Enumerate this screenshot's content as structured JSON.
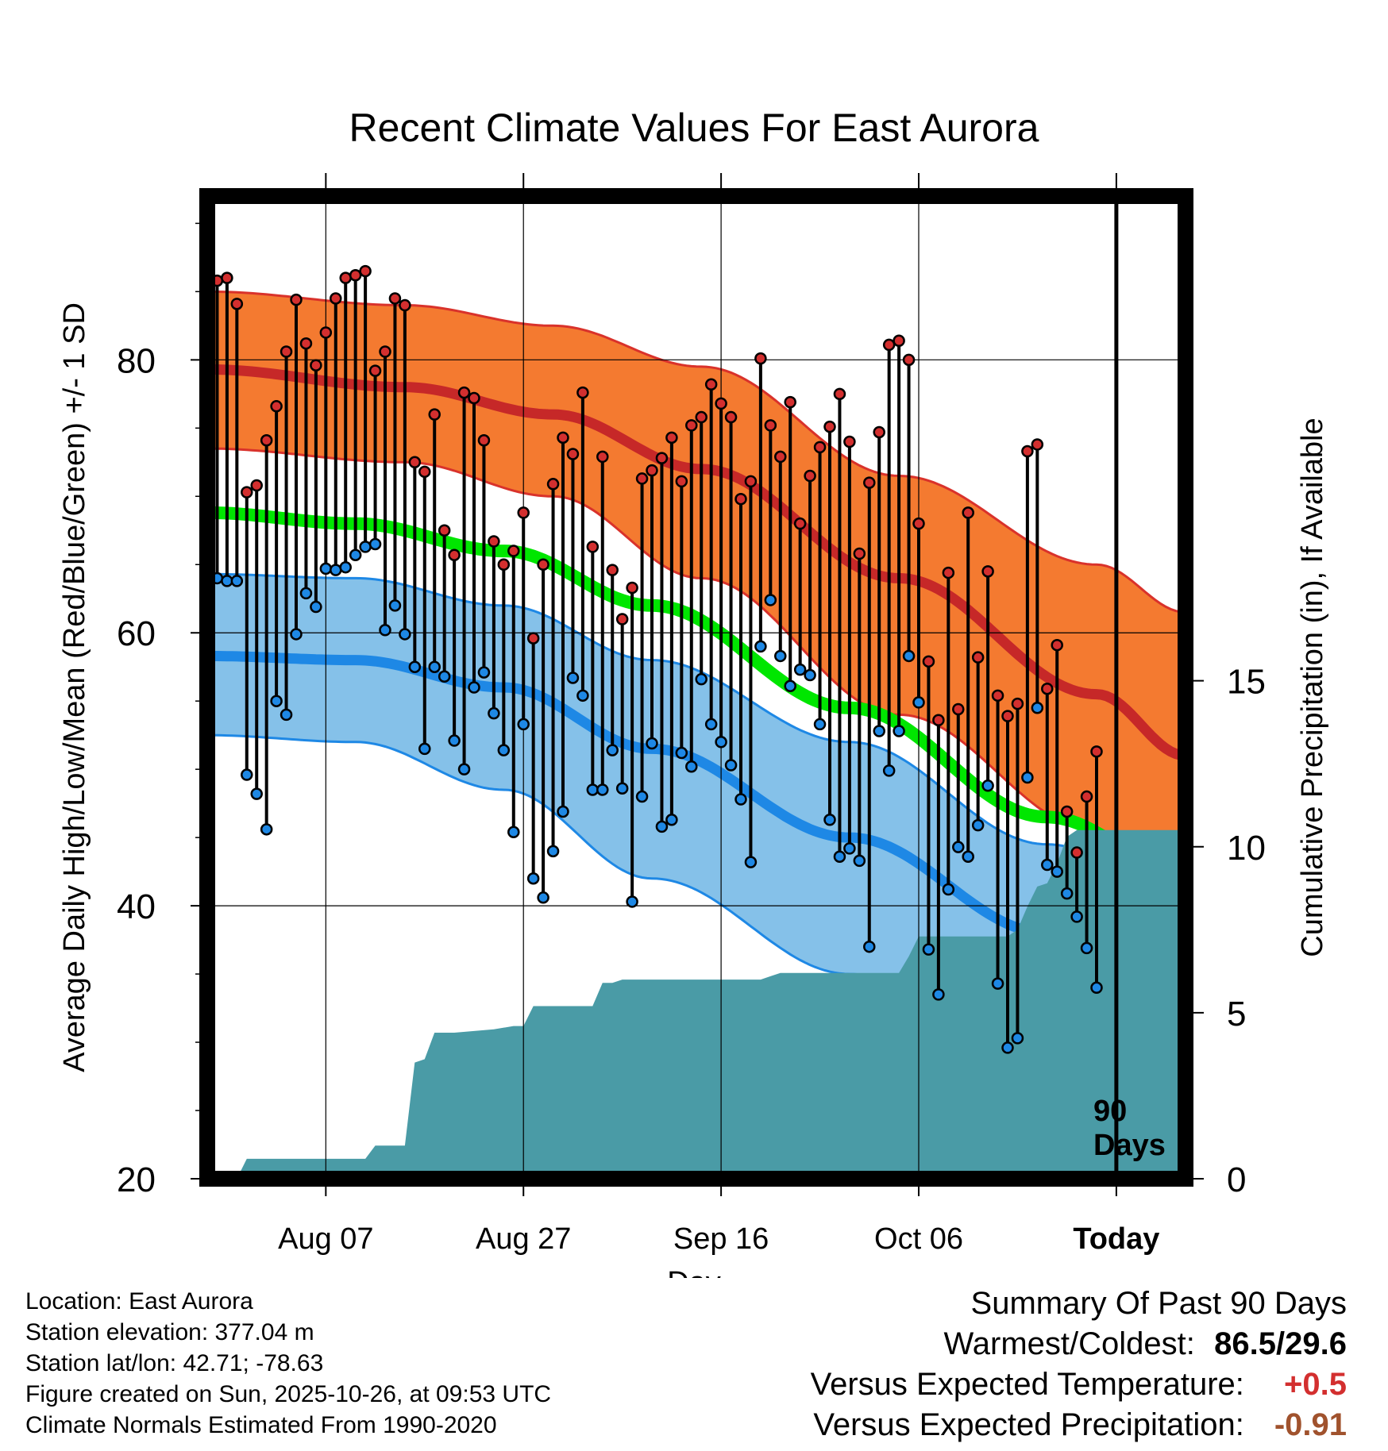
{
  "colors": {
    "high_band": "#F47A30",
    "high_band_edge": "#D9322B",
    "high_mean": "#C62828",
    "low_band": "#85C1E9",
    "low_band_edge": "#1E88E5",
    "low_mean": "#1E88E5",
    "mean_line": "#00E600",
    "precip_fill": "#4A9BA6",
    "high_point": "#D32F2F",
    "low_point": "#1E88E5",
    "plus_value": "#D32F2F",
    "minus_value": "#A0522D"
  },
  "chart_data": {
    "type": "line",
    "title": "Recent Climate Values For East Aurora",
    "xlabel": "Day",
    "ylabel": "Average Daily High/Low/Mean (Red/Blue/Green) +/- 1 SD",
    "y2label": "Cumulative Precipitation (in), If Available",
    "ylim": [
      20,
      92
    ],
    "y_ticks": [
      20,
      40,
      60,
      80
    ],
    "y2lim": [
      0,
      29.6
    ],
    "y2_ticks": [
      0,
      5,
      10,
      15
    ],
    "day_range": [
      -90,
      9
    ],
    "x_ticks": [
      {
        "day": -78,
        "label": "Aug 07"
      },
      {
        "day": -58,
        "label": "Aug 27"
      },
      {
        "day": -38,
        "label": "Sep 16"
      },
      {
        "day": -18,
        "label": "Oct 06"
      },
      {
        "day": 2,
        "label": "Today"
      }
    ],
    "today_marker_day": 2,
    "window_label": [
      "90",
      "Days"
    ],
    "normal_high": {
      "day": [
        -90,
        -70,
        -55,
        -40,
        -20,
        0,
        9
      ],
      "mean": [
        79.3,
        78.0,
        76.0,
        72.0,
        64.0,
        55.5,
        51.0
      ],
      "upper": [
        85.0,
        84.0,
        82.5,
        79.5,
        71.5,
        65.0,
        61.5
      ],
      "lower": [
        73.5,
        72.5,
        70.0,
        64.0,
        54.0,
        45.5,
        41.0
      ]
    },
    "normal_low": {
      "day": [
        -90,
        -75,
        -60,
        -45,
        -25,
        -5,
        9
      ],
      "mean": [
        58.3,
        58.0,
        56.0,
        51.5,
        45.0,
        38.0,
        34.0
      ],
      "upper": [
        64.3,
        64.0,
        62.0,
        58.0,
        52.0,
        44.5,
        41.0
      ],
      "lower": [
        52.5,
        52.0,
        48.5,
        42.0,
        35.0,
        29.5,
        26.0
      ]
    },
    "normal_mean": {
      "day": [
        -90,
        -75,
        -60,
        -45,
        -25,
        -5,
        9
      ],
      "values": [
        68.8,
        68.0,
        66.0,
        62.0,
        54.5,
        46.5,
        42.5
      ]
    },
    "observed": {
      "day": [
        -89,
        -88,
        -87,
        -86,
        -85,
        -84,
        -83,
        -82,
        -81,
        -80,
        -79,
        -78,
        -77,
        -76,
        -75,
        -74,
        -73,
        -72,
        -71,
        -70,
        -69,
        -68,
        -67,
        -66,
        -65,
        -64,
        -63,
        -62,
        -61,
        -60,
        -59,
        -58,
        -57,
        -56,
        -55,
        -54,
        -53,
        -52,
        -51,
        -50,
        -49,
        -48,
        -47,
        -46,
        -45,
        -44,
        -43,
        -42,
        -41,
        -40,
        -39,
        -38,
        -37,
        -36,
        -35,
        -34,
        -33,
        -32,
        -31,
        -30,
        -29,
        -28,
        -27,
        -26,
        -25,
        -24,
        -23,
        -22,
        -21,
        -20,
        -19,
        -18,
        -17,
        -16,
        -15,
        -14,
        -13,
        -12,
        -11,
        -10,
        -9,
        -8,
        -7,
        -6,
        -5,
        -4,
        -3,
        -2,
        -1,
        0
      ],
      "high": [
        85.8,
        86.0,
        84.1,
        70.3,
        70.8,
        74.1,
        76.6,
        80.6,
        84.4,
        81.2,
        79.6,
        82.0,
        84.5,
        86.0,
        86.2,
        86.5,
        79.2,
        80.6,
        84.5,
        84.0,
        72.5,
        71.8,
        76.0,
        67.5,
        65.7,
        77.6,
        77.2,
        74.1,
        66.7,
        65.0,
        66.0,
        68.8,
        59.6,
        65.0,
        70.9,
        74.3,
        73.1,
        77.6,
        66.3,
        72.9,
        64.6,
        61.0,
        63.3,
        71.3,
        71.9,
        72.8,
        74.3,
        71.1,
        75.2,
        75.8,
        78.2,
        76.8,
        75.8,
        69.8,
        71.1,
        80.1,
        75.2,
        72.9,
        76.9,
        68.0,
        71.5,
        73.6,
        75.1,
        77.5,
        74.0,
        65.8,
        71.0,
        74.7,
        81.1,
        81.4,
        80.0,
        68.0,
        57.9,
        53.6,
        64.4,
        54.4,
        68.8,
        58.2,
        64.5,
        55.4,
        53.9,
        54.8,
        73.3,
        73.8,
        55.9,
        59.1,
        46.9,
        43.9,
        48.0,
        51.3
      ],
      "low": [
        64.0,
        63.8,
        63.8,
        49.6,
        48.2,
        45.6,
        55.0,
        54.0,
        59.9,
        62.9,
        61.9,
        64.7,
        64.6,
        64.8,
        65.7,
        66.3,
        66.5,
        60.2,
        62.0,
        59.9,
        57.5,
        51.5,
        57.5,
        56.8,
        52.1,
        50.0,
        56.0,
        57.1,
        54.1,
        51.4,
        45.4,
        53.3,
        42.0,
        40.6,
        44.0,
        46.9,
        56.7,
        55.4,
        48.5,
        48.5,
        51.4,
        48.6,
        40.3,
        48.0,
        51.9,
        45.8,
        46.3,
        51.2,
        50.2,
        56.6,
        53.3,
        52.0,
        50.3,
        47.8,
        43.2,
        59.0,
        62.4,
        58.3,
        56.1,
        57.3,
        56.9,
        53.3,
        46.3,
        43.6,
        44.2,
        43.3,
        37.0,
        52.8,
        49.9,
        52.8,
        58.3,
        54.9,
        36.8,
        33.5,
        41.2,
        44.3,
        43.6,
        45.9,
        48.8,
        34.3,
        29.6,
        30.3,
        49.4,
        54.5,
        43.0,
        42.5,
        40.9,
        39.2,
        36.9,
        34.0
      ]
    },
    "precipitation": {
      "day": [
        -90,
        -87,
        -86,
        -74,
        -73,
        -70,
        -69,
        -68,
        -67,
        -66,
        -65,
        -61,
        -59,
        -58,
        -57,
        -51,
        -50,
        -49,
        -48,
        -47,
        -34,
        -33,
        -32,
        -31,
        -20,
        -19,
        -18,
        -17,
        -16,
        -12,
        -9,
        -8,
        -7,
        -6,
        -5,
        -4,
        -3,
        -2,
        -1,
        0,
        9
      ],
      "cumulative": [
        0.0,
        0.0,
        0.6,
        0.6,
        1.0,
        1.0,
        3.5,
        3.6,
        4.4,
        4.4,
        4.4,
        4.5,
        4.6,
        4.6,
        5.2,
        5.2,
        5.9,
        5.9,
        6.0,
        6.0,
        6.0,
        6.1,
        6.2,
        6.2,
        6.2,
        6.7,
        7.3,
        7.3,
        7.3,
        7.3,
        7.3,
        7.5,
        8.2,
        8.8,
        8.9,
        9.5,
        10.3,
        10.5,
        10.5,
        10.5,
        10.5
      ]
    }
  },
  "footer": {
    "location": "Location: East Aurora",
    "elevation": "Station elevation: 377.04 m",
    "latlon": "Station lat/lon: 42.71; -78.63",
    "created": "Figure created on Sun, 2025-10-26, at 09:53 UTC",
    "normals": "Climate Normals Estimated From 1990-2020"
  },
  "summary": {
    "heading": "Summary Of Past 90 Days",
    "warm_cold_label": "Warmest/Coldest:",
    "warm_cold_value": "86.5/29.6",
    "temp_label": "Versus Expected Temperature:",
    "temp_value": "+0.5",
    "precip_label": "Versus Expected Precipitation:",
    "precip_value": "-0.91"
  }
}
